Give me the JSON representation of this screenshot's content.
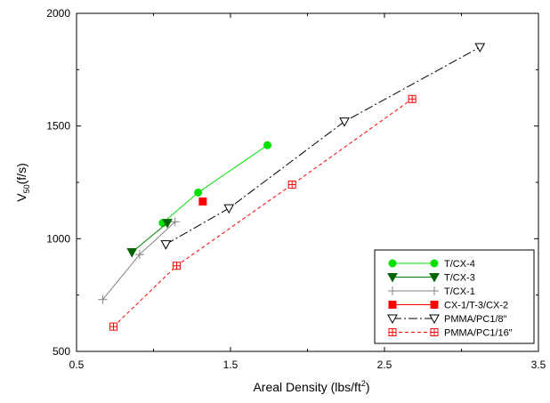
{
  "chart_data": {
    "type": "line",
    "title": "",
    "xlabel": {
      "base": "Areal Density (lbs/ft",
      "sup": "2",
      "tail": ")"
    },
    "ylabel": {
      "base": "V",
      "sub": "50",
      "tail": "(f/s)"
    },
    "xlim": [
      0.5,
      3.5
    ],
    "ylim": [
      500,
      2000
    ],
    "xticks": [
      0.5,
      1.5,
      2.5,
      3.5
    ],
    "xtick_labels": [
      "0.5",
      "1.5",
      "2.5",
      "3.5"
    ],
    "yticks": [
      500,
      1000,
      1500,
      2000
    ],
    "ytick_labels": [
      "500",
      "1000",
      "1500",
      "2000"
    ],
    "grid": false,
    "legend_position": "bottom-right",
    "series": [
      {
        "name": "T/CX-4",
        "color": "#00e000",
        "dash": "",
        "marker": "circle",
        "marker_fill": "#00e000",
        "marker_stroke": "#00e000",
        "x": [
          1.06,
          1.29,
          1.74
        ],
        "y": [
          1070,
          1205,
          1415
        ]
      },
      {
        "name": "T/CX-3",
        "color": "#008000",
        "dash": "",
        "marker": "triangle-down",
        "marker_fill": "#006400",
        "marker_stroke": "#006400",
        "x": [
          0.86,
          1.09
        ],
        "y": [
          940,
          1070
        ]
      },
      {
        "name": "T/CX-1",
        "color": "#808080",
        "dash": "",
        "marker": "plus",
        "marker_fill": "none",
        "marker_stroke": "#808080",
        "x": [
          0.67,
          0.91,
          1.14
        ],
        "y": [
          730,
          930,
          1075
        ]
      },
      {
        "name": "CX-1/T-3/CX-2",
        "color": "#ff0000",
        "dash": "",
        "marker": "square",
        "marker_fill": "#ff0000",
        "marker_stroke": "#ff0000",
        "x": [
          1.32
        ],
        "y": [
          1165
        ]
      },
      {
        "name": "PMMA/PC1/8\"",
        "color": "#000000",
        "dash": "10,3,2,3",
        "marker": "triangle-down-open",
        "marker_fill": "#ffffff",
        "marker_stroke": "#000000",
        "x": [
          1.08,
          1.49,
          2.24,
          3.12
        ],
        "y": [
          975,
          1135,
          1520,
          1850
        ]
      },
      {
        "name": "PMMA/PC1/16\"",
        "color": "#ff0000",
        "dash": "4,3",
        "marker": "square-open",
        "marker_fill": "#ffffff",
        "marker_stroke": "#ff0000",
        "x": [
          0.74,
          1.15,
          1.9,
          2.68
        ],
        "y": [
          610,
          880,
          1240,
          1620
        ]
      }
    ]
  }
}
